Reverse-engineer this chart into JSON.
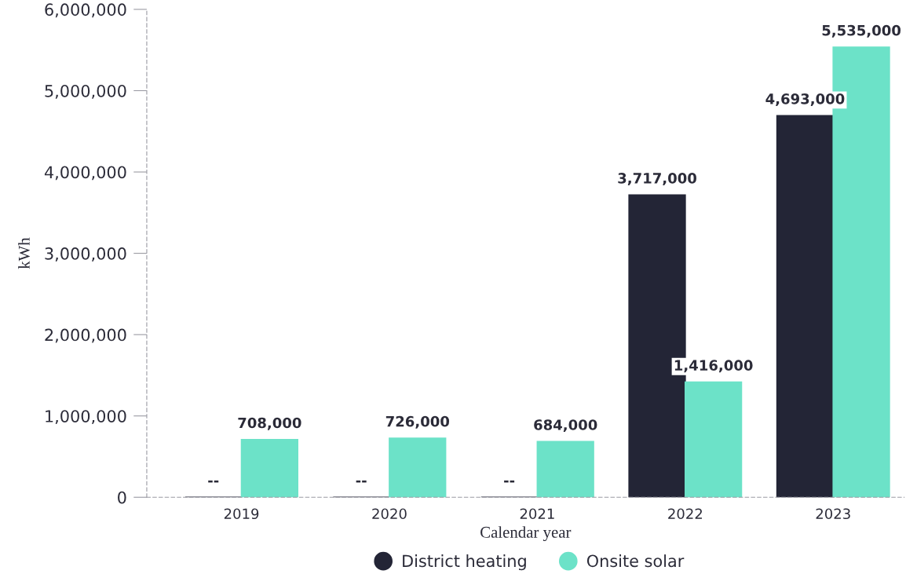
{
  "chart_data": {
    "type": "bar",
    "xlabel": "Calendar year",
    "ylabel": "kWh",
    "categories": [
      "2019",
      "2020",
      "2021",
      "2022",
      "2023"
    ],
    "series": [
      {
        "name": "District heating",
        "color": "#232536",
        "values": [
          0,
          0,
          0,
          3717000,
          4693000
        ],
        "value_labels": [
          "--",
          "--",
          "--",
          "3,717,000",
          "4,693,000"
        ]
      },
      {
        "name": "Onsite solar",
        "color": "#6ce2c8",
        "values": [
          708000,
          726000,
          684000,
          1416000,
          5535000
        ],
        "value_labels": [
          "708,000",
          "726,000",
          "684,000",
          "1,416,000",
          "5,535,000"
        ]
      }
    ],
    "ylim": [
      0,
      6000000
    ],
    "yticks": [
      {
        "value": 0,
        "label": "0"
      },
      {
        "value": 1000000,
        "label": "1,000,000"
      },
      {
        "value": 2000000,
        "label": "2,000,000"
      },
      {
        "value": 3000000,
        "label": "3,000,000"
      },
      {
        "value": 4000000,
        "label": "4,000,000"
      },
      {
        "value": 5000000,
        "label": "5,000,000"
      },
      {
        "value": 6000000,
        "label": "6,000,000"
      }
    ],
    "grid": false,
    "legend": "bottom"
  }
}
